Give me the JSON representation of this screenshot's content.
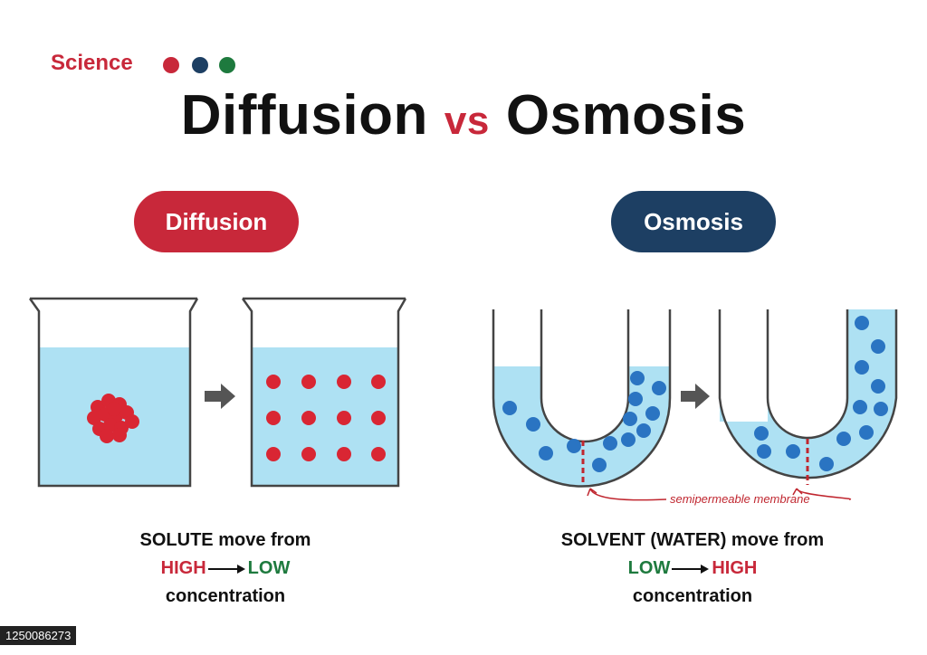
{
  "header": {
    "category": "Science",
    "title_left": "Diffusion",
    "title_vs": "vs",
    "title_right": "Osmosis"
  },
  "colors": {
    "red": "#c8283a",
    "navy": "#1d3f63",
    "green": "#1e7a3e",
    "water": "#aee1f3",
    "solute": "#d92633",
    "solvent_particle": "#2a74c2",
    "arrow_gray": "#555555",
    "membrane": "#c0262f"
  },
  "diffusion": {
    "pill_label": "Diffusion",
    "caption_line1": "SOLUTE move from",
    "from": "HIGH",
    "to": "LOW",
    "caption_line3": "concentration"
  },
  "osmosis": {
    "pill_label": "Osmosis",
    "membrane_label": "semipermeable membrane",
    "caption_line1": "SOLVENT (WATER) move from",
    "from": "LOW",
    "to": "HIGH",
    "caption_line3": "concentration"
  },
  "stock_id": "1250086273"
}
